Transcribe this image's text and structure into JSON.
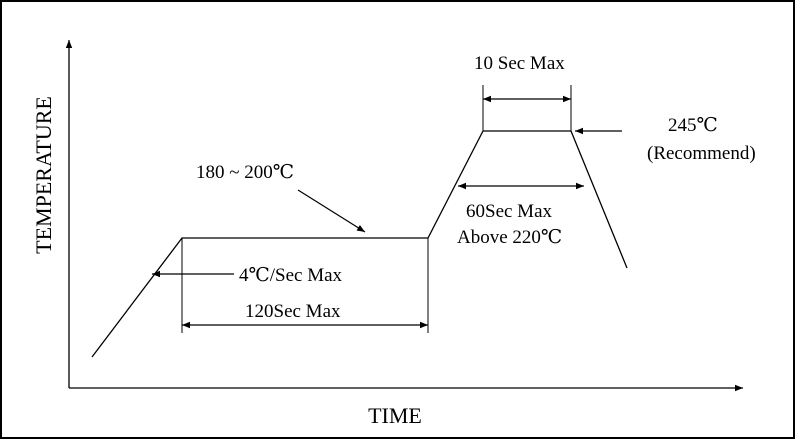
{
  "axes": {
    "x_label": "TIME",
    "y_label": "TEMPERATURE"
  },
  "annotations": {
    "preheat_temp": "180 ~ 200℃",
    "ramp_rate": "4℃/Sec Max",
    "preheat_time": "120Sec  Max",
    "peak_time": "10 Sec Max",
    "peak_temp": "245℃",
    "peak_temp_note": "(Recommend)",
    "reflow_time": "60Sec Max",
    "reflow_condition": "Above 220℃"
  },
  "colors": {
    "line": "#000000",
    "background": "#ffffff"
  }
}
